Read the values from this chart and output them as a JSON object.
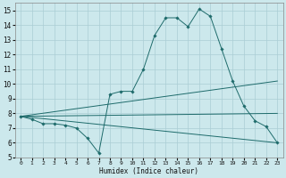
{
  "xlabel": "Humidex (Indice chaleur)",
  "xlim": [
    -0.5,
    23.5
  ],
  "ylim": [
    5,
    15.5
  ],
  "yticks": [
    5,
    6,
    7,
    8,
    9,
    10,
    11,
    12,
    13,
    14,
    15
  ],
  "xticks": [
    0,
    1,
    2,
    3,
    4,
    5,
    6,
    7,
    8,
    9,
    10,
    11,
    12,
    13,
    14,
    15,
    16,
    17,
    18,
    19,
    20,
    21,
    22,
    23
  ],
  "bg_color": "#cce8ec",
  "line_color": "#1e6b6b",
  "grid_color": "#aacdd4",
  "series": [
    {
      "x": [
        0,
        1,
        2,
        3,
        4,
        5,
        6,
        7,
        8,
        9,
        10,
        11,
        12,
        13,
        14,
        15,
        16,
        17,
        18,
        19,
        20,
        21,
        22,
        23
      ],
      "y": [
        7.8,
        7.6,
        7.3,
        7.3,
        7.2,
        7.0,
        6.3,
        5.3,
        9.3,
        9.5,
        9.5,
        11.0,
        13.3,
        14.5,
        14.5,
        13.9,
        15.1,
        14.6,
        12.4,
        10.2,
        8.5,
        7.5,
        7.1,
        6.0
      ],
      "with_markers": true
    },
    {
      "x": [
        0,
        23
      ],
      "y": [
        7.8,
        10.2
      ],
      "with_markers": false
    },
    {
      "x": [
        0,
        23
      ],
      "y": [
        7.8,
        8.0
      ],
      "with_markers": false
    },
    {
      "x": [
        0,
        23
      ],
      "y": [
        7.8,
        6.0
      ],
      "with_markers": false
    }
  ]
}
